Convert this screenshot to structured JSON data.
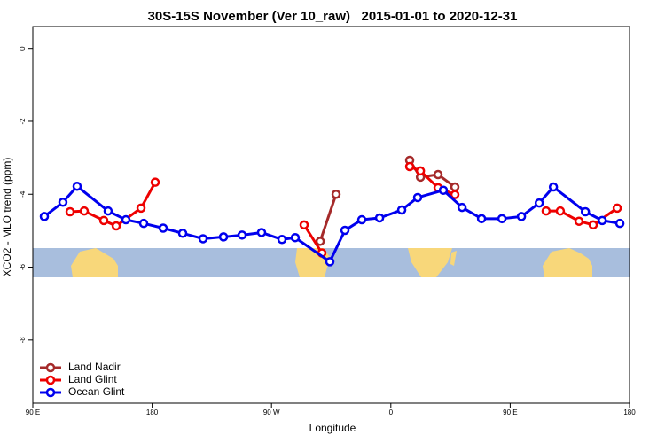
{
  "chart_data": {
    "type": "line",
    "title": "30S-15S November (Ver 10_raw)   2015-01-01 to 2020-12-31",
    "x_label": "Longitude",
    "y_label": "XCO2 - MLO trend (ppm)",
    "xlim": [
      90,
      540
    ],
    "ylim": [
      -9.73,
      0.6
    ],
    "xticks": [
      {
        "value": 90,
        "label": "90 E"
      },
      180,
      {
        "value": 270,
        "label": "90 W"
      },
      {
        "value": 360,
        "label": "0"
      },
      {
        "value": 450,
        "label": "90 E"
      },
      {
        "value": 540,
        "label": "180"
      }
    ],
    "yticks": [
      0,
      -2,
      -4,
      -6,
      -8
    ],
    "legend": "bottom-left",
    "series": [
      {
        "name": "Land Nadir",
        "color": "#a52a2a",
        "x": [
          306.7,
          318.7,
          null,
          374.2,
          382.3,
          395.6,
          408.3
        ],
        "values": [
          -5.29,
          -4.0,
          null,
          -3.07,
          -3.53,
          -3.46,
          -3.8
        ]
      },
      {
        "name": "Land Glint",
        "color": "#ee0000",
        "x": [
          118.1,
          128.8,
          143.5,
          152.9,
          171.6,
          182.3,
          null,
          294.6,
          308.0,
          null,
          374.2,
          382.3,
          395.6,
          408.3,
          null,
          477.1,
          487.8,
          501.9,
          512.6,
          530.7
        ],
        "values": [
          -4.48,
          -4.46,
          -4.72,
          -4.87,
          -4.38,
          -3.67,
          null,
          -4.84,
          -5.61,
          null,
          -3.24,
          -3.36,
          -3.82,
          -4.01,
          null,
          -4.46,
          -4.46,
          -4.74,
          -4.84,
          -4.38
        ]
      },
      {
        "name": "Ocean Glint",
        "color": "#0000ee",
        "x": [
          98.7,
          112.7,
          123.4,
          146.8,
          160.2,
          173.6,
          188.3,
          203.0,
          218.4,
          233.8,
          247.8,
          262.5,
          277.9,
          287.9,
          314.0,
          325.4,
          338.1,
          351.5,
          368.2,
          380.2,
          399.6,
          413.7,
          428.4,
          443.8,
          458.5,
          471.9,
          482.6,
          506.7,
          519.4,
          532.7
        ],
        "values": [
          -4.61,
          -4.22,
          -3.78,
          -4.46,
          -4.7,
          -4.8,
          -4.93,
          -5.07,
          -5.22,
          -5.17,
          -5.12,
          -5.05,
          -5.24,
          -5.19,
          -5.85,
          -4.99,
          -4.7,
          -4.65,
          -4.43,
          -4.09,
          -3.89,
          -4.36,
          -4.67,
          -4.67,
          -4.61,
          -4.24,
          -3.8,
          -4.48,
          -4.72,
          -4.8
        ]
      }
    ]
  }
}
